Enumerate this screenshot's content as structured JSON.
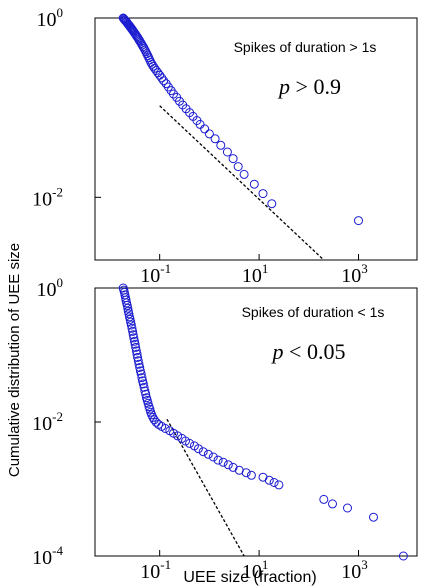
{
  "figure": {
    "ylabel": "Cumulative distribution of UEE size",
    "xlabel": "UEE size (fraction)"
  },
  "chart_data": [
    {
      "type": "scatter",
      "x_scale": "log",
      "y_scale": "log",
      "xlim": [
        0.005,
        15000
      ],
      "ylim": [
        0.002,
        1
      ],
      "x_ticks": [
        {
          "value": 0.1,
          "base": "10",
          "exp": "-1"
        },
        {
          "value": 10,
          "base": "10",
          "exp": "1"
        },
        {
          "value": 1000,
          "base": "10",
          "exp": "3"
        }
      ],
      "y_ticks": [
        {
          "value": 1,
          "base": "10",
          "exp": "0"
        },
        {
          "value": 0.01,
          "base": "10",
          "exp": "-2"
        }
      ],
      "annotation": "Spikes of duration > 1s",
      "stat_label": {
        "var": "p",
        "op": " > ",
        "val": "0.9"
      },
      "grid": false,
      "marker": "open-circle",
      "marker_color": "#1c1cd0",
      "fit_line": {
        "style": "dashed",
        "color": "#000000",
        "x": [
          0.1,
          200
        ],
        "y": [
          0.105,
          0.002
        ]
      },
      "points": [
        [
          0.0185,
          1.0
        ],
        [
          0.019,
          0.98
        ],
        [
          0.0196,
          0.96
        ],
        [
          0.0202,
          0.94
        ],
        [
          0.0209,
          0.92
        ],
        [
          0.0216,
          0.9
        ],
        [
          0.0223,
          0.88
        ],
        [
          0.023,
          0.86
        ],
        [
          0.0238,
          0.84
        ],
        [
          0.0246,
          0.82
        ],
        [
          0.0254,
          0.8
        ],
        [
          0.0263,
          0.78
        ],
        [
          0.0272,
          0.76
        ],
        [
          0.0282,
          0.74
        ],
        [
          0.0292,
          0.72
        ],
        [
          0.0302,
          0.7
        ],
        [
          0.0313,
          0.68
        ],
        [
          0.0325,
          0.66
        ],
        [
          0.0337,
          0.64
        ],
        [
          0.035,
          0.62
        ],
        [
          0.0364,
          0.6
        ],
        [
          0.0378,
          0.58
        ],
        [
          0.0393,
          0.56
        ],
        [
          0.0409,
          0.54
        ],
        [
          0.0426,
          0.52
        ],
        [
          0.0444,
          0.5
        ],
        [
          0.0463,
          0.48
        ],
        [
          0.0483,
          0.46
        ],
        [
          0.0505,
          0.44
        ],
        [
          0.0528,
          0.42
        ],
        [
          0.0552,
          0.4
        ],
        [
          0.0578,
          0.38
        ],
        [
          0.0605,
          0.36
        ],
        [
          0.0634,
          0.34
        ],
        [
          0.0665,
          0.32
        ],
        [
          0.07,
          0.305
        ],
        [
          0.074,
          0.29
        ],
        [
          0.079,
          0.275
        ],
        [
          0.085,
          0.26
        ],
        [
          0.092,
          0.245
        ],
        [
          0.1,
          0.23
        ],
        [
          0.11,
          0.215
        ],
        [
          0.12,
          0.2
        ],
        [
          0.135,
          0.185
        ],
        [
          0.15,
          0.17
        ],
        [
          0.17,
          0.155
        ],
        [
          0.19,
          0.142
        ],
        [
          0.22,
          0.13
        ],
        [
          0.25,
          0.118
        ],
        [
          0.29,
          0.107
        ],
        [
          0.34,
          0.097
        ],
        [
          0.4,
          0.088
        ],
        [
          0.47,
          0.08
        ],
        [
          0.56,
          0.072
        ],
        [
          0.65,
          0.065
        ],
        [
          0.8,
          0.058
        ],
        [
          1.0,
          0.051
        ],
        [
          1.3,
          0.045
        ],
        [
          1.7,
          0.038
        ],
        [
          2.3,
          0.032
        ],
        [
          3.0,
          0.027
        ],
        [
          3.8,
          0.022
        ],
        [
          5.0,
          0.018
        ],
        [
          8.0,
          0.014
        ],
        [
          12.0,
          0.011
        ],
        [
          18.0,
          0.0085
        ],
        [
          1000,
          0.0055
        ]
      ]
    },
    {
      "type": "scatter",
      "x_scale": "log",
      "y_scale": "log",
      "xlim": [
        0.005,
        15000
      ],
      "ylim": [
        0.0001,
        1
      ],
      "x_ticks": [
        {
          "value": 0.1,
          "base": "10",
          "exp": "-1"
        },
        {
          "value": 10,
          "base": "10",
          "exp": "1"
        },
        {
          "value": 1000,
          "base": "10",
          "exp": "3"
        }
      ],
      "y_ticks": [
        {
          "value": 1,
          "base": "10",
          "exp": "0"
        },
        {
          "value": 0.01,
          "base": "10",
          "exp": "-2"
        },
        {
          "value": 0.0001,
          "base": "10",
          "exp": "-4"
        }
      ],
      "annotation": "Spikes of duration < 1s",
      "stat_label": {
        "var": "p",
        "op": " < ",
        "val": "0.05"
      },
      "grid": false,
      "marker": "open-circle",
      "marker_color": "#1c1cd0",
      "fit_line": {
        "style": "dashed",
        "color": "#000000",
        "x": [
          0.14,
          5
        ],
        "y": [
          0.011,
          0.0001
        ]
      },
      "points": [
        [
          0.0185,
          1.0
        ],
        [
          0.019,
          0.93
        ],
        [
          0.0195,
          0.86
        ],
        [
          0.02,
          0.79
        ],
        [
          0.0205,
          0.72
        ],
        [
          0.021,
          0.66
        ],
        [
          0.0216,
          0.6
        ],
        [
          0.0222,
          0.55
        ],
        [
          0.0228,
          0.5
        ],
        [
          0.0234,
          0.45
        ],
        [
          0.024,
          0.41
        ],
        [
          0.0247,
          0.37
        ],
        [
          0.0254,
          0.34
        ],
        [
          0.0261,
          0.31
        ],
        [
          0.0269,
          0.28
        ],
        [
          0.0277,
          0.25
        ],
        [
          0.0285,
          0.225
        ],
        [
          0.0293,
          0.2
        ],
        [
          0.0302,
          0.18
        ],
        [
          0.0311,
          0.16
        ],
        [
          0.032,
          0.145
        ],
        [
          0.033,
          0.13
        ],
        [
          0.034,
          0.115
        ],
        [
          0.035,
          0.103
        ],
        [
          0.036,
          0.092
        ],
        [
          0.0372,
          0.082
        ],
        [
          0.0384,
          0.073
        ],
        [
          0.0397,
          0.065
        ],
        [
          0.041,
          0.058
        ],
        [
          0.0424,
          0.052
        ],
        [
          0.0438,
          0.046
        ],
        [
          0.0453,
          0.041
        ],
        [
          0.0469,
          0.037
        ],
        [
          0.0486,
          0.033
        ],
        [
          0.0504,
          0.029
        ],
        [
          0.0523,
          0.026
        ],
        [
          0.0543,
          0.023
        ],
        [
          0.0564,
          0.021
        ],
        [
          0.0586,
          0.019
        ],
        [
          0.061,
          0.017
        ],
        [
          0.0635,
          0.0155
        ],
        [
          0.066,
          0.014
        ],
        [
          0.069,
          0.0128
        ],
        [
          0.073,
          0.0117
        ],
        [
          0.078,
          0.0108
        ],
        [
          0.085,
          0.0099
        ],
        [
          0.095,
          0.0092
        ],
        [
          0.11,
          0.0086
        ],
        [
          0.13,
          0.008
        ],
        [
          0.16,
          0.0074
        ],
        [
          0.19,
          0.0068
        ],
        [
          0.23,
          0.0062
        ],
        [
          0.28,
          0.0057
        ],
        [
          0.33,
          0.0052
        ],
        [
          0.4,
          0.0048
        ],
        [
          0.5,
          0.0044
        ],
        [
          0.6,
          0.004
        ],
        [
          0.75,
          0.0036
        ],
        [
          0.95,
          0.0033
        ],
        [
          1.2,
          0.003
        ],
        [
          1.5,
          0.0027
        ],
        [
          1.9,
          0.0025
        ],
        [
          2.4,
          0.0023
        ],
        [
          3.0,
          0.0021
        ],
        [
          4.0,
          0.0019
        ],
        [
          5.5,
          0.00175
        ],
        [
          7.0,
          0.0016
        ],
        [
          12.0,
          0.0015
        ],
        [
          16.0,
          0.00135
        ],
        [
          20.0,
          0.00125
        ],
        [
          25.0,
          0.00115
        ],
        [
          200,
          0.0007
        ],
        [
          300,
          0.0006
        ],
        [
          600,
          0.00052
        ],
        [
          2000,
          0.00038
        ],
        [
          8000,
          0.0001
        ]
      ]
    }
  ]
}
